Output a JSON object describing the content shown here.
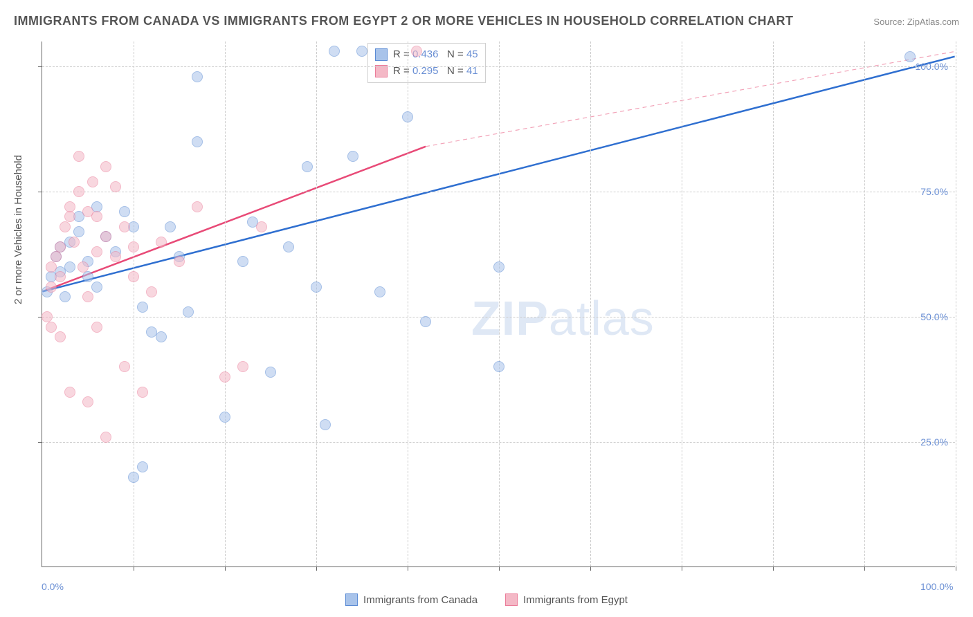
{
  "title": "IMMIGRANTS FROM CANADA VS IMMIGRANTS FROM EGYPT 2 OR MORE VEHICLES IN HOUSEHOLD CORRELATION CHART",
  "source_label": "Source:",
  "source_value": "ZipAtlas.com",
  "watermark_text_bold": "ZIP",
  "watermark_text_rest": "atlas",
  "yaxis_label": "2 or more Vehicles in Household",
  "chart": {
    "type": "scatter",
    "xlim": [
      0,
      100
    ],
    "ylim": [
      0,
      105
    ],
    "xtick_labels": {
      "0": "0.0%",
      "100": "100.0%"
    },
    "ytick_labels": {
      "25": "25.0%",
      "50": "50.0%",
      "75": "75.0%",
      "100": "100.0%"
    },
    "gridlines_x": [
      10,
      20,
      30,
      40,
      50,
      60,
      70,
      80,
      90,
      100
    ],
    "gridlines_y": [
      25,
      50,
      75,
      100
    ],
    "background_color": "#ffffff",
    "grid_color": "#cccccc",
    "axis_color": "#666666",
    "label_color_axis": "#6a8fd4",
    "label_fontsize": 14,
    "title_fontsize": 18,
    "point_radius": 8,
    "point_opacity": 0.55,
    "series": [
      {
        "name": "Immigrants from Canada",
        "color_fill": "#a8c3ea",
        "color_stroke": "#5b8bd4",
        "R": "0.436",
        "N": "45",
        "trend": {
          "x1": 0,
          "y1": 55,
          "x2": 100,
          "y2": 102,
          "style": "solid",
          "width": 2.5,
          "color": "#2f6fd0"
        },
        "points": [
          [
            0.5,
            55
          ],
          [
            1,
            58
          ],
          [
            1.5,
            62
          ],
          [
            2,
            59
          ],
          [
            2,
            64
          ],
          [
            2.5,
            54
          ],
          [
            3,
            60
          ],
          [
            3,
            65
          ],
          [
            4,
            67
          ],
          [
            4,
            70
          ],
          [
            5,
            58
          ],
          [
            5,
            61
          ],
          [
            6,
            72
          ],
          [
            6,
            56
          ],
          [
            7,
            66
          ],
          [
            8,
            63
          ],
          [
            9,
            71
          ],
          [
            10,
            68
          ],
          [
            11,
            52
          ],
          [
            12,
            47
          ],
          [
            13,
            46
          ],
          [
            14,
            68
          ],
          [
            15,
            62
          ],
          [
            16,
            51
          ],
          [
            17,
            85
          ],
          [
            17,
            98
          ],
          [
            20,
            30
          ],
          [
            22,
            61
          ],
          [
            23,
            69
          ],
          [
            25,
            39
          ],
          [
            27,
            64
          ],
          [
            29,
            80
          ],
          [
            30,
            56
          ],
          [
            31,
            28.5
          ],
          [
            32,
            103
          ],
          [
            34,
            82
          ],
          [
            35,
            103
          ],
          [
            37,
            55
          ],
          [
            40,
            90
          ],
          [
            42,
            49
          ],
          [
            50,
            40
          ],
          [
            50,
            60
          ],
          [
            95,
            102
          ],
          [
            11,
            20
          ],
          [
            10,
            18
          ]
        ]
      },
      {
        "name": "Immigrants from Egypt",
        "color_fill": "#f4b8c6",
        "color_stroke": "#eb7d9a",
        "R": "0.295",
        "N": "41",
        "trend_solid": {
          "x1": 0,
          "y1": 55,
          "x2": 42,
          "y2": 84,
          "style": "solid",
          "width": 2.5,
          "color": "#e84a77"
        },
        "trend_dashed": {
          "x1": 42,
          "y1": 84,
          "x2": 100,
          "y2": 103,
          "style": "dashed",
          "width": 1.2,
          "color": "#f2a3b8"
        },
        "points": [
          [
            0.5,
            50
          ],
          [
            1,
            56
          ],
          [
            1,
            60
          ],
          [
            1.5,
            62
          ],
          [
            2,
            58
          ],
          [
            2,
            64
          ],
          [
            2.5,
            68
          ],
          [
            3,
            70
          ],
          [
            3,
            72
          ],
          [
            3.5,
            65
          ],
          [
            4,
            75
          ],
          [
            4,
            82
          ],
          [
            4.5,
            60
          ],
          [
            5,
            54
          ],
          [
            5,
            71
          ],
          [
            5.5,
            77
          ],
          [
            6,
            63
          ],
          [
            6,
            48
          ],
          [
            7,
            66
          ],
          [
            7,
            80
          ],
          [
            8,
            62
          ],
          [
            8,
            76
          ],
          [
            9,
            68
          ],
          [
            9,
            40
          ],
          [
            10,
            58
          ],
          [
            11,
            35
          ],
          [
            12,
            55
          ],
          [
            13,
            65
          ],
          [
            15,
            61
          ],
          [
            17,
            72
          ],
          [
            20,
            38
          ],
          [
            22,
            40
          ],
          [
            24,
            68
          ],
          [
            7,
            26
          ],
          [
            5,
            33
          ],
          [
            3,
            35
          ],
          [
            2,
            46
          ],
          [
            1,
            48
          ],
          [
            6,
            70
          ],
          [
            10,
            64
          ],
          [
            41,
            103
          ]
        ]
      }
    ]
  },
  "legend_top": {
    "R_label": "R =",
    "N_label": "N ="
  },
  "legend_bottom": {
    "items": [
      {
        "label": "Immigrants from Canada",
        "fill": "#a8c3ea",
        "stroke": "#5b8bd4"
      },
      {
        "label": "Immigrants from Egypt",
        "fill": "#f4b8c6",
        "stroke": "#eb7d9a"
      }
    ]
  }
}
